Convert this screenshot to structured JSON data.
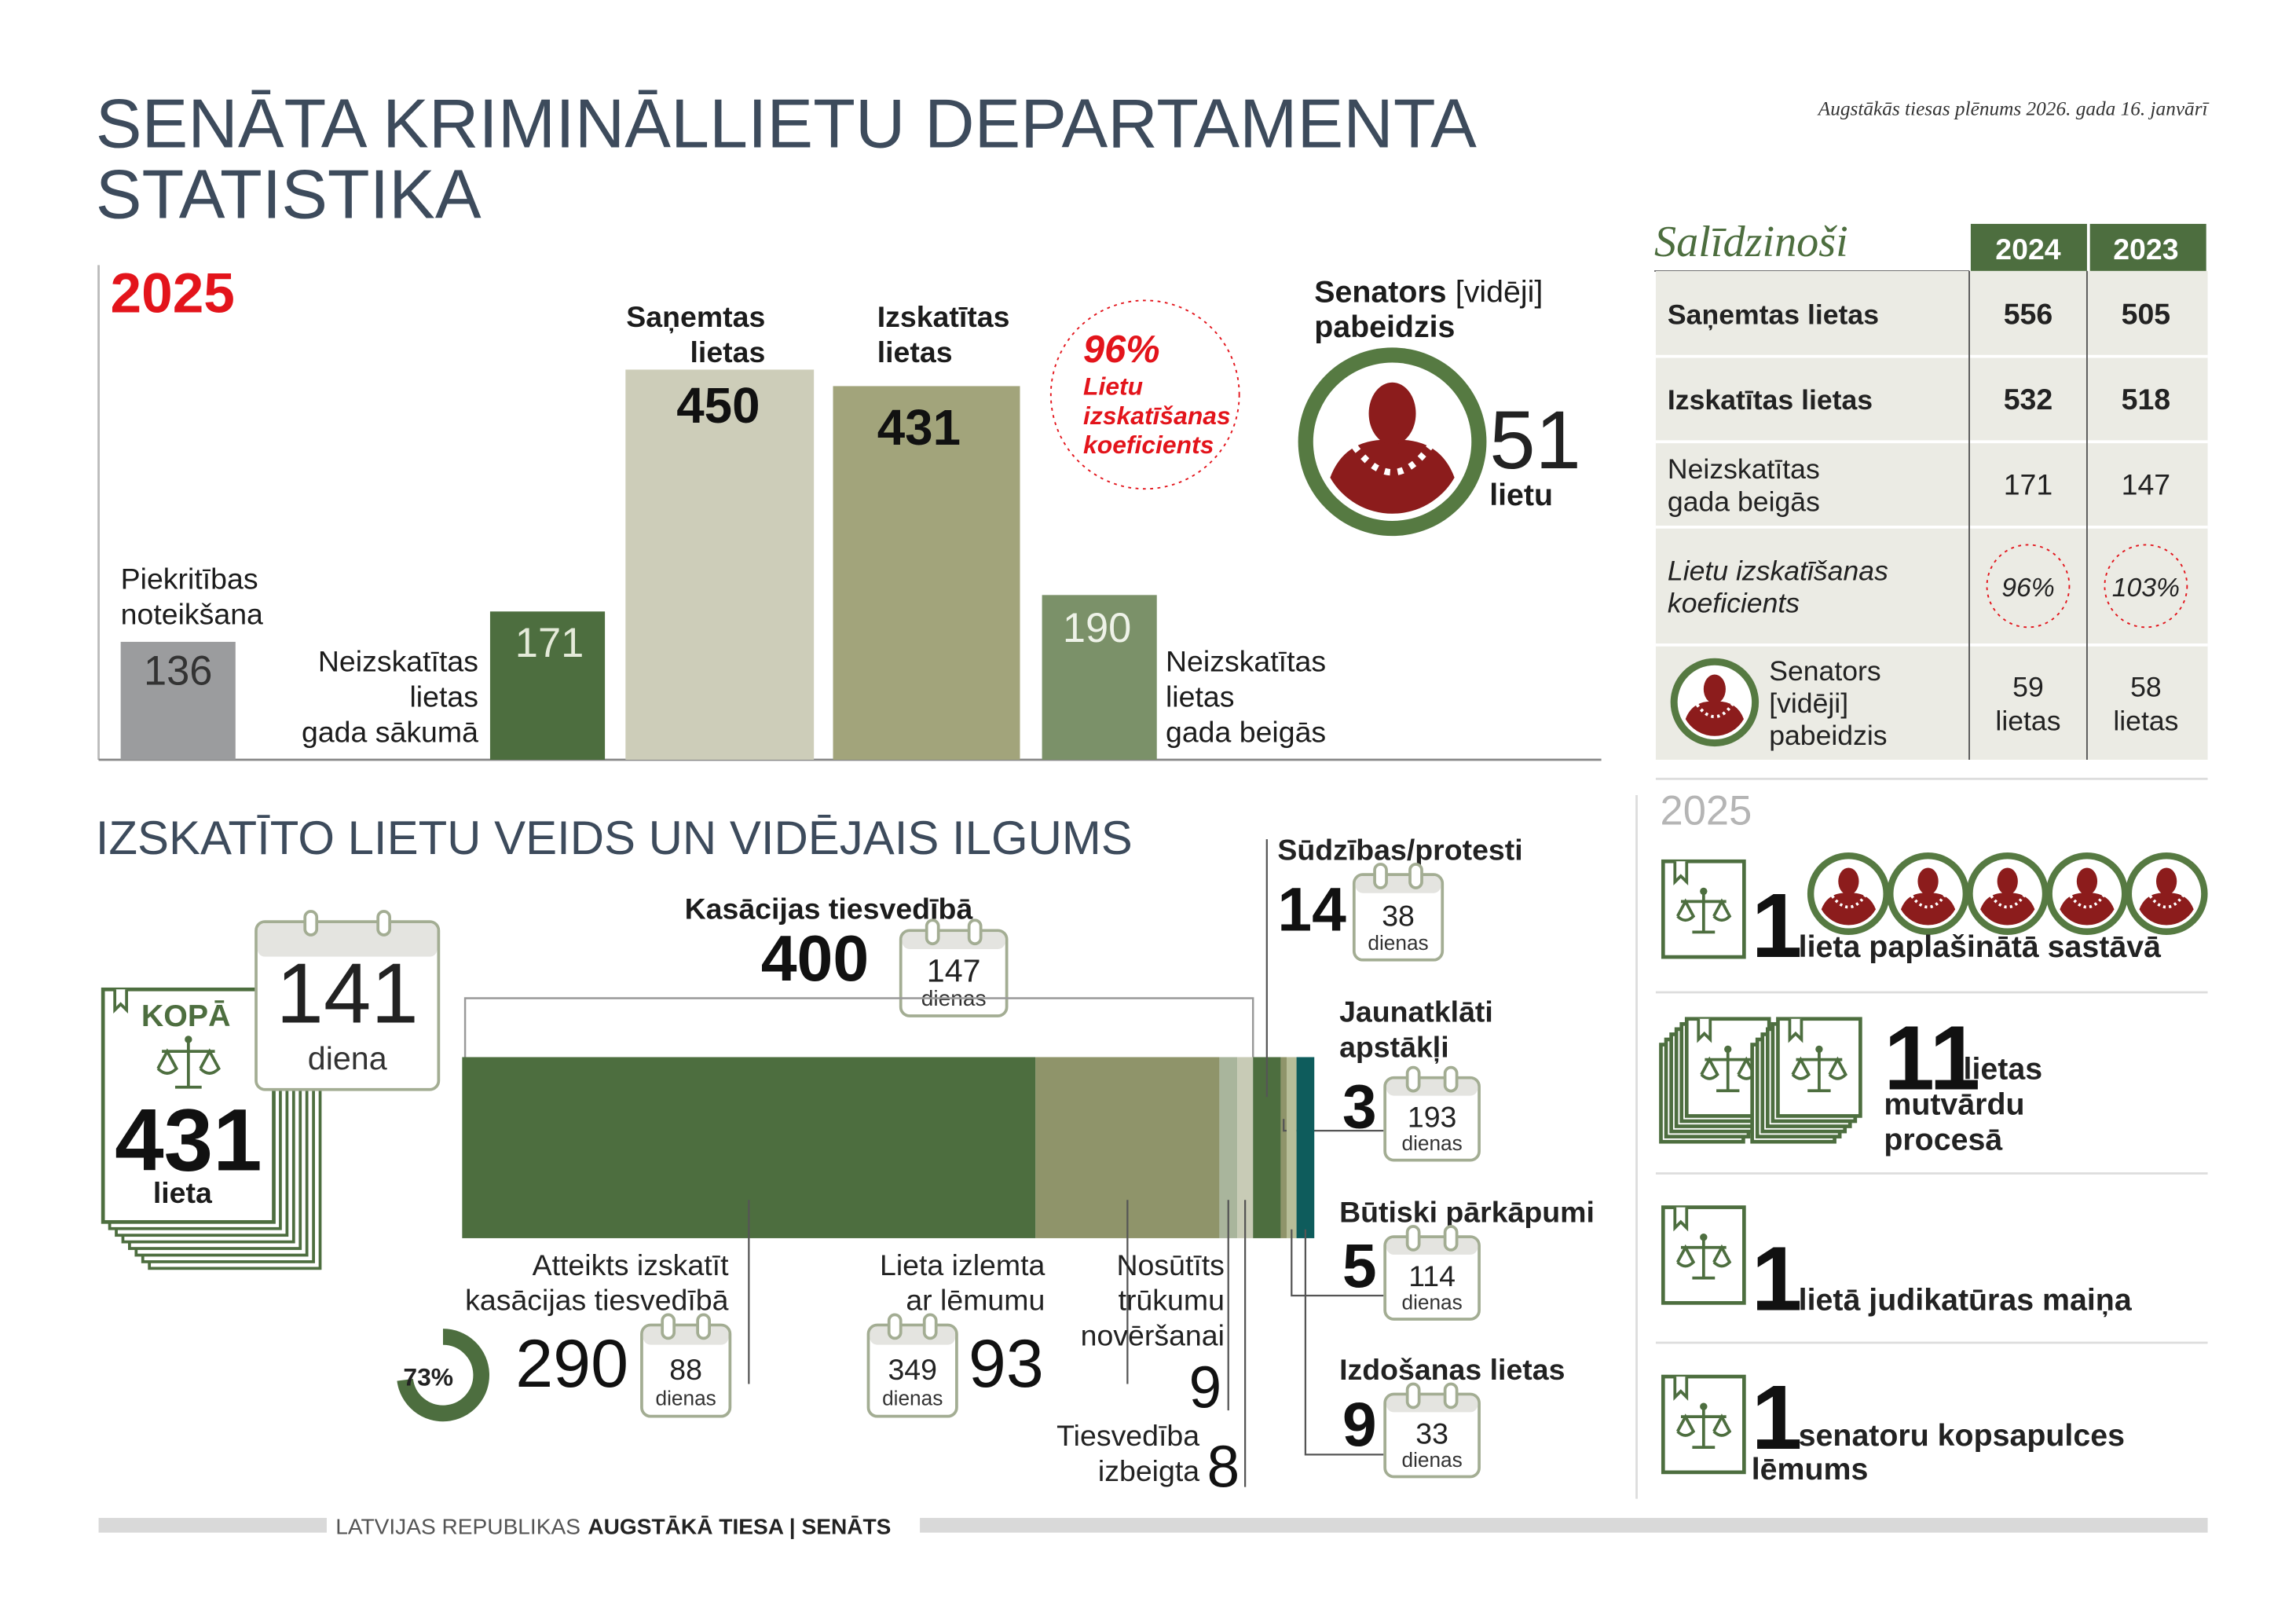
{
  "header": {
    "title": "SENĀTA KRIMINĀLLIETU DEPARTAMENTA\nSTATISTIKA",
    "subtitle": "Augstākās tiesas plēnums 2026. gada 16. janvārī"
  },
  "chart_data": [
    {
      "type": "bar",
      "title": "2025",
      "categories": [
        "Piekritības\nnoteikšana",
        "Neizskatītas\nlietas\ngada sākumā",
        "Saņemtas\nlietas",
        "Izskatītas\nlietas",
        "Neizskatītas\nlietas\ngada beigās"
      ],
      "values": [
        136,
        171,
        450,
        431,
        190
      ],
      "colors": [
        "#9b9c9e",
        "#4d6e3f",
        "#cdcdb9",
        "#a2a47b",
        "#7b9169"
      ],
      "coefficient": {
        "value": 96,
        "label": "96%",
        "text": "Lietu\nizskatīšanas\nkoeficients"
      },
      "senator": {
        "title": "Senators",
        "note": "[vidēji]",
        "title_end": "pabeidzis",
        "value": 51,
        "unit": "lietu"
      }
    },
    {
      "type": "stacked-bar",
      "title": "IZSKATĪTO LIETU VEIDS UN VIDĒJAIS ILGUMS",
      "total": {
        "label": "KOPĀ",
        "value": 431,
        "unit": "lieta",
        "days": 141,
        "days_unit": "diena"
      },
      "group": {
        "name": "Kasācijas tiesvedībā",
        "value": 400,
        "days": 147,
        "days_unit": "dienas"
      },
      "series": [
        {
          "name": "Atteikts izskatīt\nkasācijas tiesvedībā",
          "value": 290,
          "days": 88,
          "days_unit": "dienas",
          "share": 73,
          "share_label": "73%",
          "color": "#4d6e3f"
        },
        {
          "name": "Lieta izlemta\nar lēmumu",
          "value": 93,
          "days": 349,
          "days_unit": "dienas",
          "color": "#8f946a"
        },
        {
          "name": "Nosūtīts\ntrūkumu\nnovēršanai",
          "value": 9,
          "color": "#a9b59c"
        },
        {
          "name": "Tiesvedība\nizbeigta",
          "value": 8,
          "color": "#c8cbb6"
        },
        {
          "name": "Sūdzības/protesti",
          "value": 14,
          "days": 38,
          "days_unit": "dienas",
          "color": "#4d6e3f"
        },
        {
          "name": "Jaunatklāti\napstākļi",
          "value": 3,
          "days": 193,
          "days_unit": "dienas",
          "color": "#8f946a"
        },
        {
          "name": "Būtiski pārkāpumi",
          "value": 5,
          "days": 114,
          "days_unit": "dienas",
          "color": "#b7bd98"
        },
        {
          "name": "Izdošanas lietas",
          "value": 9,
          "days": 33,
          "days_unit": "dienas",
          "color": "#0e5c5c"
        }
      ]
    }
  ],
  "comparison": {
    "title": "Salīdzinoši",
    "columns": [
      "2024",
      "2023"
    ],
    "rows": [
      {
        "label": "Saņemtas lietas",
        "values": [
          556,
          505
        ]
      },
      {
        "label": "Izskatītas lietas",
        "values": [
          532,
          518
        ]
      },
      {
        "label": "Neizskatītas\ngada beigās",
        "values": [
          171,
          147
        ]
      },
      {
        "label": "Lietu izskatīšanas\nkoeficients",
        "values": [
          {
            "value": 96,
            "label": "96%"
          },
          {
            "value": 103,
            "label": "103%"
          }
        ]
      },
      {
        "label": "Senators\n[vidēji]\npabeidzis",
        "values": [
          59,
          58
        ],
        "unit": "lietas"
      }
    ]
  },
  "highlights": {
    "year": "2025",
    "items": [
      {
        "value": 1,
        "text": [
          "lieta paplašinātā sastāvā"
        ]
      },
      {
        "value": 11,
        "text": [
          "lietas",
          "mutvārdu",
          "procesā"
        ]
      },
      {
        "value": 1,
        "text": [
          "lietā judikatūras maiņa"
        ]
      },
      {
        "value": 1,
        "text": [
          "senatoru kopsapulces",
          "lēmums"
        ]
      }
    ]
  },
  "footer": {
    "text": "LATVIJAS REPUBLIKAS",
    "bold": "AUGSTĀKĀ TIESA | SENĀTS"
  }
}
